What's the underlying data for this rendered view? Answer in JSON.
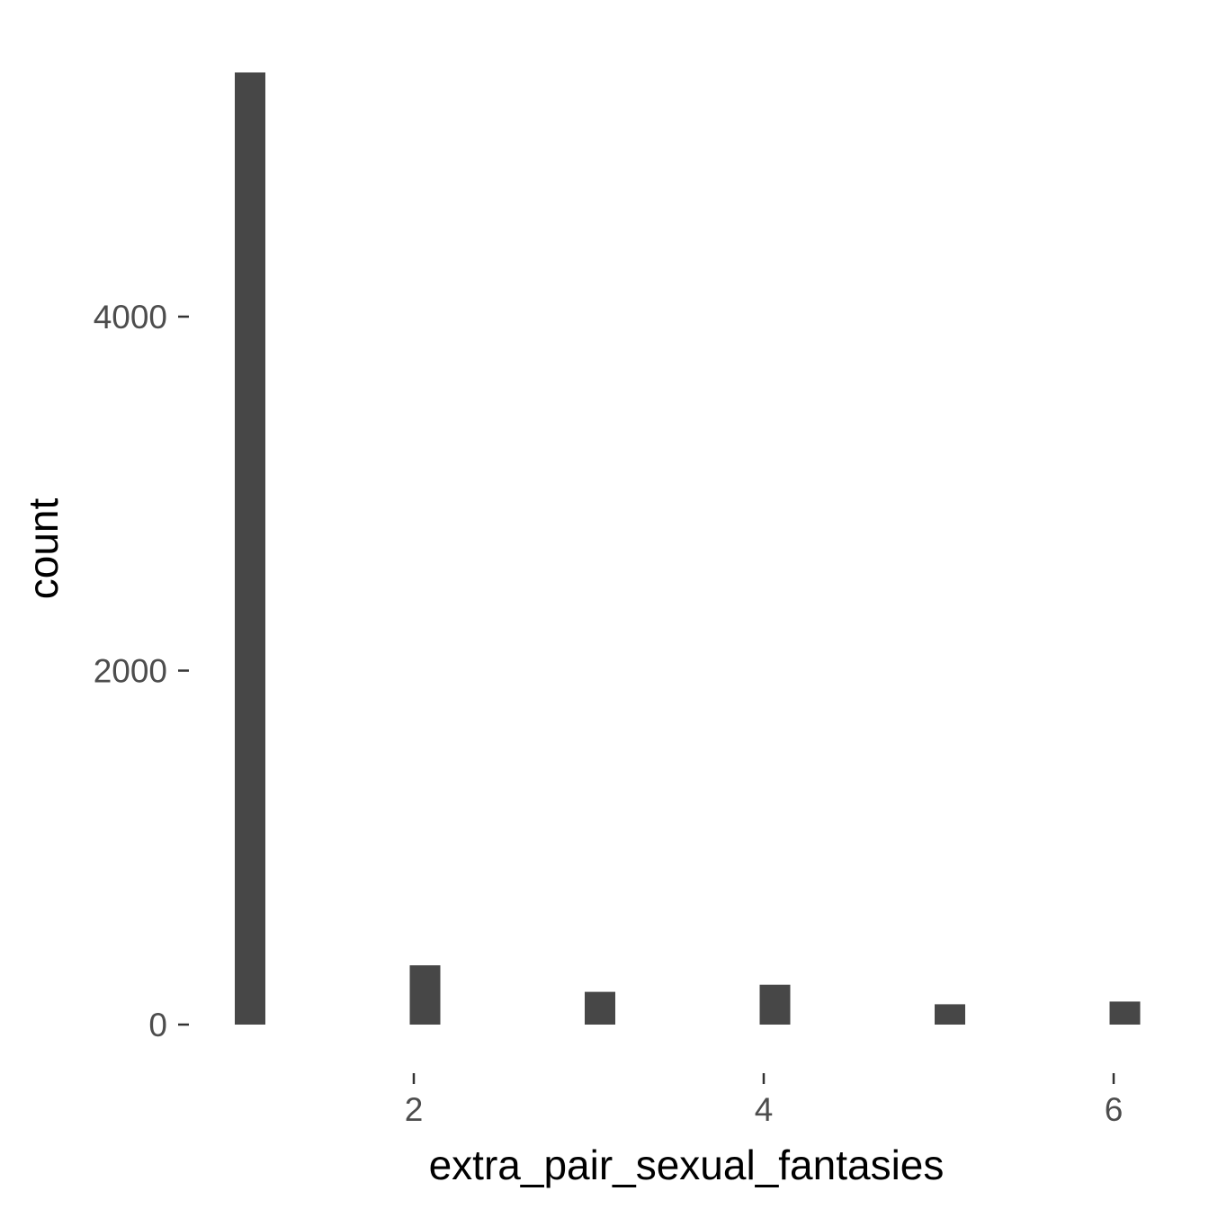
{
  "chart_data": {
    "type": "bar",
    "subtype": "histogram",
    "title": "",
    "xlabel": "extra_pair_sexual_fantasies",
    "ylabel": "count",
    "bar_color": "#474747",
    "background": "#ffffff",
    "grid": false,
    "bins": [
      {
        "x": 1,
        "count": 5380
      },
      {
        "x": 2,
        "count": 335
      },
      {
        "x": 3,
        "count": 185
      },
      {
        "x": 4,
        "count": 225
      },
      {
        "x": 5,
        "count": 115
      },
      {
        "x": 6,
        "count": 130
      }
    ],
    "xlim": [
      0.9,
      6.2
    ],
    "ylim": [
      -80,
      5500
    ],
    "x_ticks": [
      {
        "value": 2,
        "label": "2"
      },
      {
        "value": 4,
        "label": "4"
      },
      {
        "value": 6,
        "label": "6"
      }
    ],
    "y_ticks": [
      {
        "value": 0,
        "label": "0"
      },
      {
        "value": 2000,
        "label": "2000"
      },
      {
        "value": 4000,
        "label": "4000"
      }
    ]
  }
}
